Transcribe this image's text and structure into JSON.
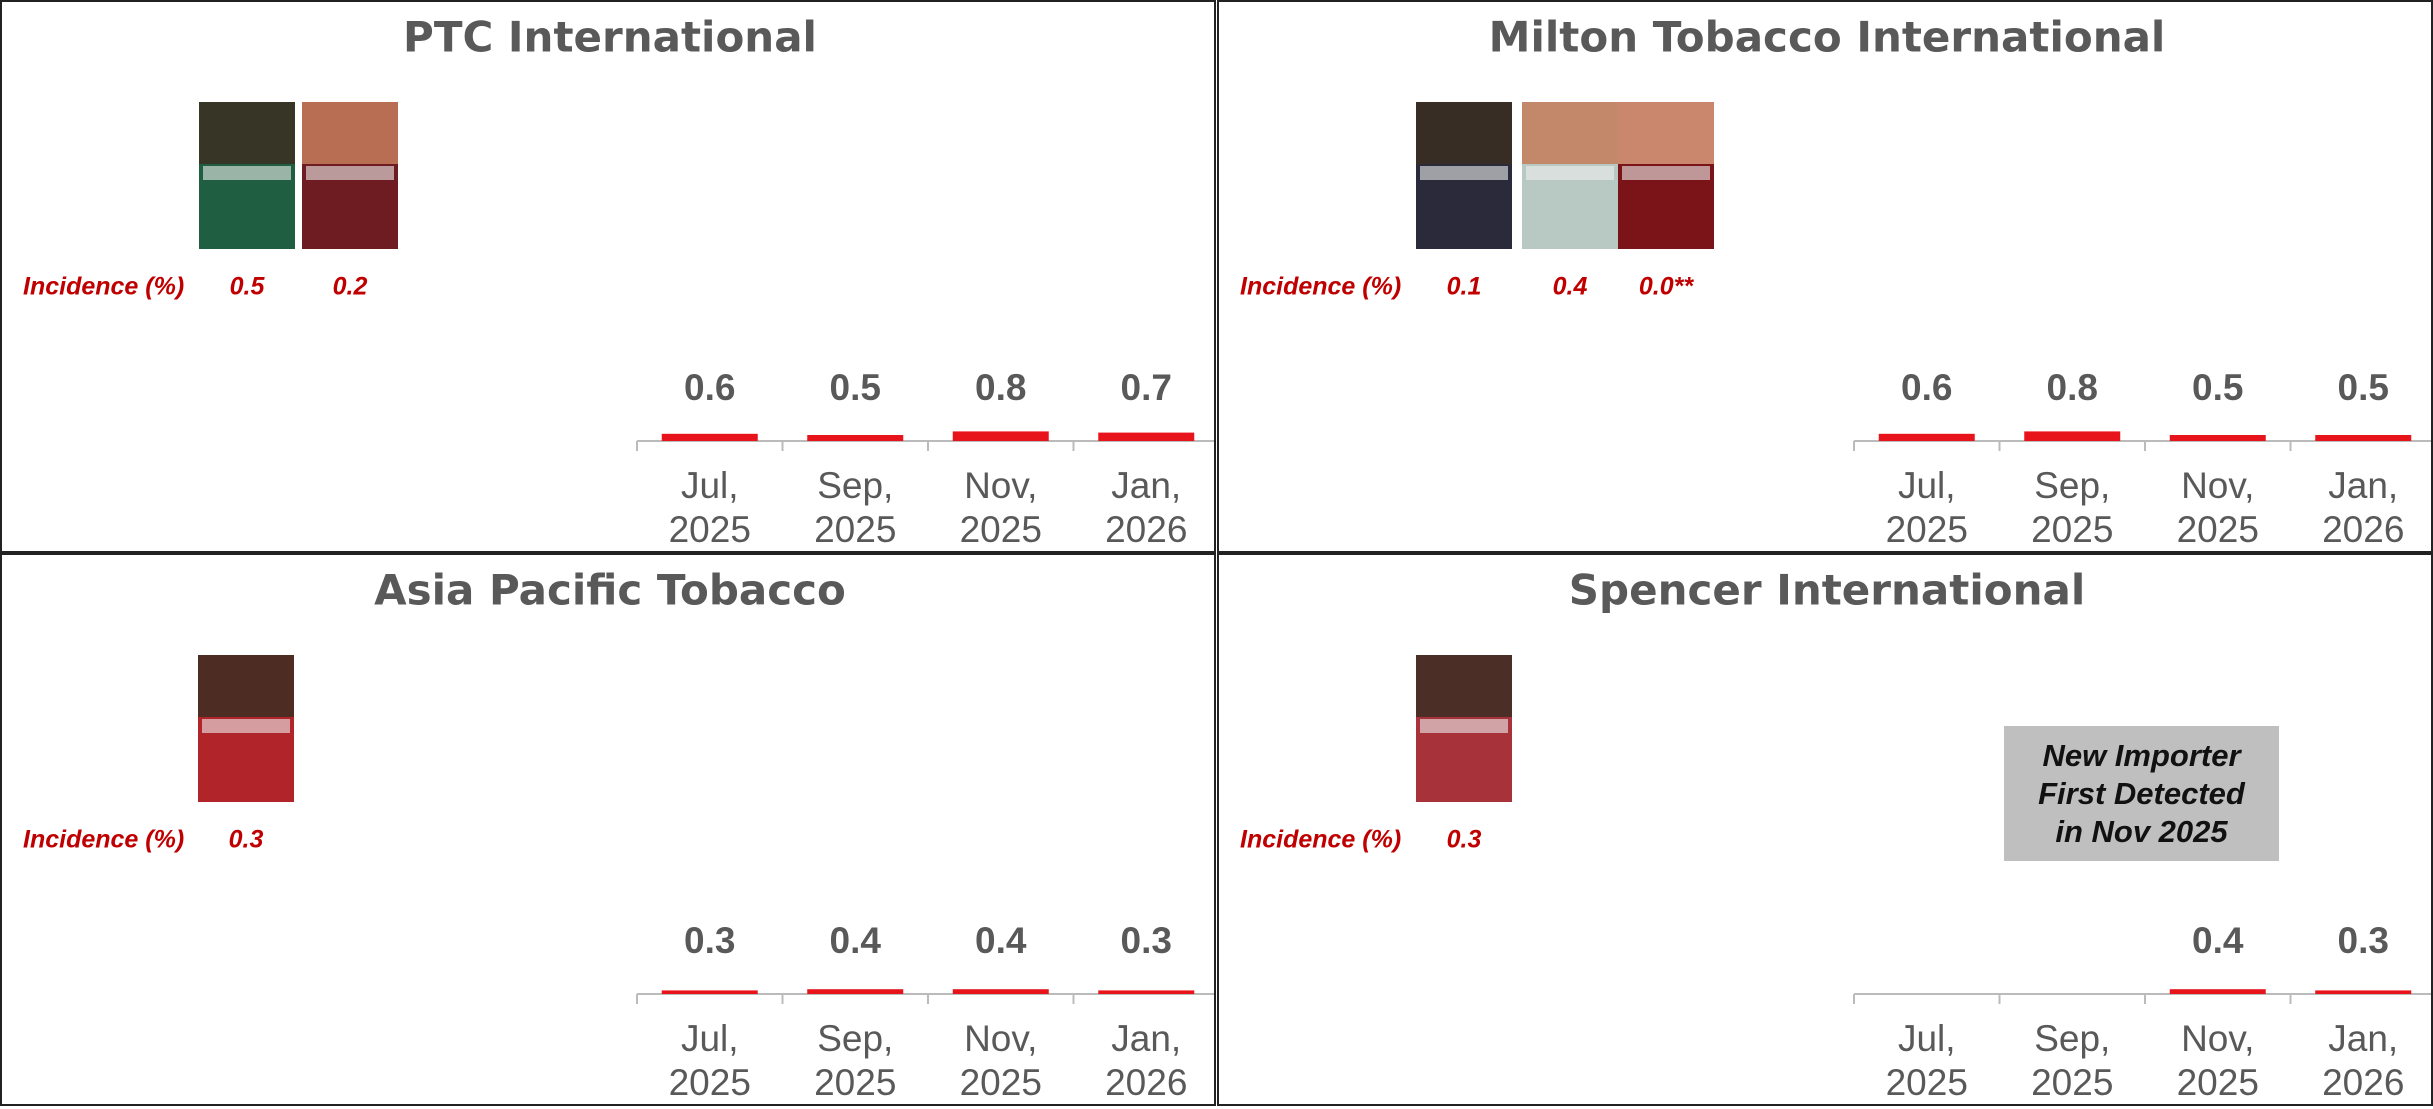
{
  "chart_data": [
    {
      "type": "bar",
      "title": "PTC International",
      "incidence_label": "Incidence (%)",
      "incidence": [
        0.5,
        0.2
      ],
      "categories": [
        "Jul, 2025",
        "Sep, 2025",
        "Nov, 2025",
        "Jan, 2026"
      ],
      "values": [
        0.6,
        0.5,
        0.8,
        0.7
      ],
      "color": "#e8141b"
    },
    {
      "type": "bar",
      "title": "Milton Tobacco International",
      "incidence_label": "Incidence (%)",
      "incidence": [
        0.1,
        0.4,
        {
          "value": 0.0,
          "label": "0.0**"
        }
      ],
      "categories": [
        "Jul, 2025",
        "Sep, 2025",
        "Nov, 2025",
        "Jan, 2026"
      ],
      "values": [
        0.6,
        0.8,
        0.5,
        0.5
      ],
      "color": "#e8141b"
    },
    {
      "type": "bar",
      "title": "Asia Pacific Tobacco",
      "incidence_label": "Incidence (%)",
      "incidence": [
        0.3
      ],
      "categories": [
        "Jul, 2025",
        "Sep, 2025",
        "Nov, 2025",
        "Jan, 2026"
      ],
      "values": [
        0.3,
        0.4,
        0.4,
        0.3
      ],
      "color": "#e8141b"
    },
    {
      "type": "bar",
      "title": "Spencer International",
      "incidence_label": "Incidence (%)",
      "incidence": [
        0.3
      ],
      "categories": [
        "Jul, 2025",
        "Sep, 2025",
        "Nov, 2025",
        "Jan, 2026"
      ],
      "values": [
        null,
        null,
        0.4,
        0.3
      ],
      "color": "#e8141b",
      "annotation": "New Importer First Detected in Nov 2025"
    }
  ]
}
